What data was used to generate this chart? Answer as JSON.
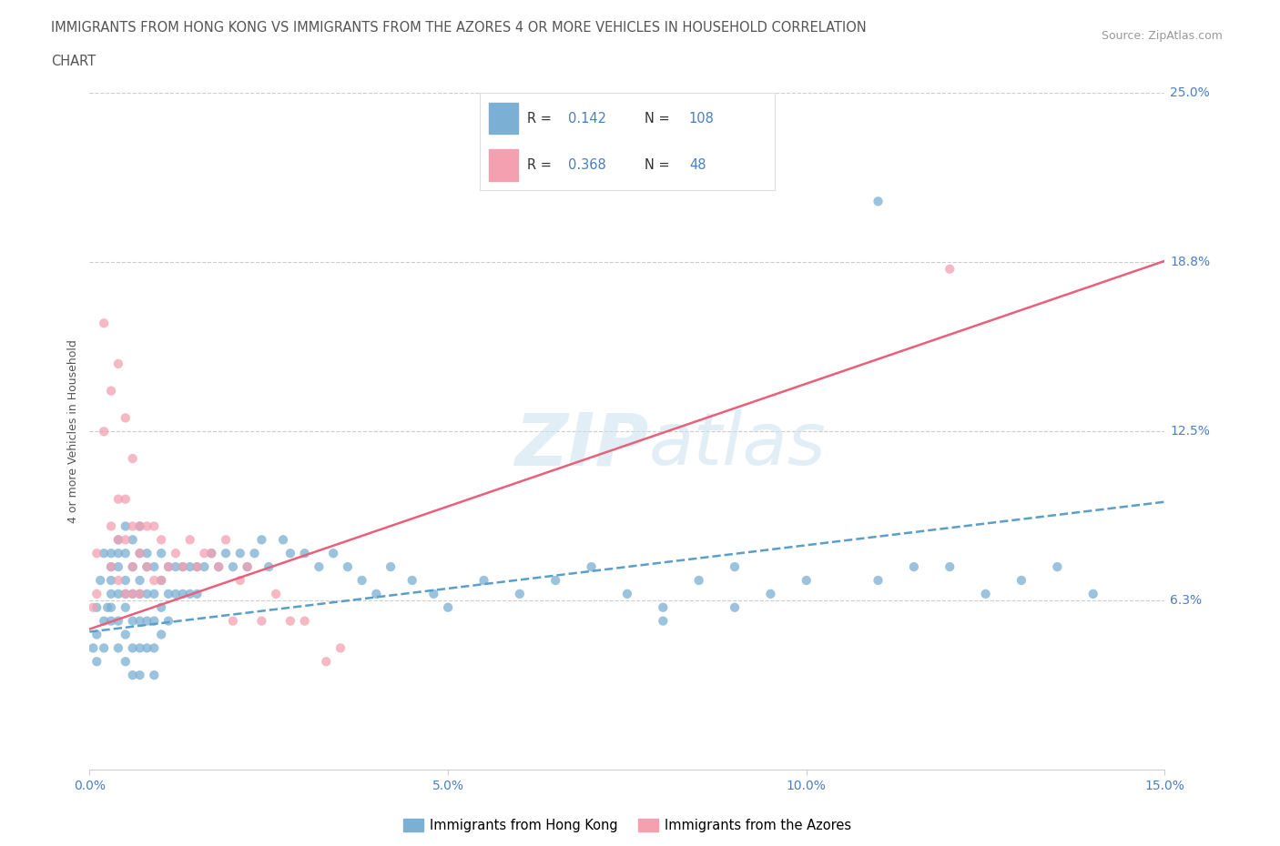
{
  "title_line1": "IMMIGRANTS FROM HONG KONG VS IMMIGRANTS FROM THE AZORES 4 OR MORE VEHICLES IN HOUSEHOLD CORRELATION",
  "title_line2": "CHART",
  "source_text": "Source: ZipAtlas.com",
  "ylabel": "4 or more Vehicles in Household",
  "xlim": [
    0.0,
    0.15
  ],
  "ylim": [
    0.0,
    0.25
  ],
  "yticks": [
    0.0,
    0.0625,
    0.125,
    0.1875,
    0.25
  ],
  "ytick_labels": [
    "",
    "6.3%",
    "12.5%",
    "18.8%",
    "25.0%"
  ],
  "xticks": [
    0.0,
    0.05,
    0.1,
    0.15
  ],
  "xtick_labels": [
    "0.0%",
    "5.0%",
    "10.0%",
    "15.0%"
  ],
  "legend_labels": [
    "Immigrants from Hong Kong",
    "Immigrants from the Azores"
  ],
  "r_hk": 0.142,
  "n_hk": 108,
  "r_az": 0.368,
  "n_az": 48,
  "color_hk": "#7bafd4",
  "color_az": "#f4a0b0",
  "color_line_hk": "#5b9ec9",
  "color_line_az": "#e8607a",
  "title_color": "#555555",
  "tick_label_color": "#4a7fc1",
  "background_color": "#ffffff",
  "grid_color": "#cccccc",
  "hk_x": [
    0.0005,
    0.001,
    0.001,
    0.001,
    0.0015,
    0.002,
    0.002,
    0.002,
    0.0025,
    0.003,
    0.003,
    0.003,
    0.003,
    0.003,
    0.003,
    0.004,
    0.004,
    0.004,
    0.004,
    0.004,
    0.004,
    0.005,
    0.005,
    0.005,
    0.005,
    0.005,
    0.005,
    0.005,
    0.006,
    0.006,
    0.006,
    0.006,
    0.006,
    0.006,
    0.007,
    0.007,
    0.007,
    0.007,
    0.007,
    0.007,
    0.007,
    0.008,
    0.008,
    0.008,
    0.008,
    0.008,
    0.009,
    0.009,
    0.009,
    0.009,
    0.009,
    0.01,
    0.01,
    0.01,
    0.01,
    0.011,
    0.011,
    0.011,
    0.012,
    0.012,
    0.013,
    0.013,
    0.014,
    0.014,
    0.015,
    0.015,
    0.016,
    0.017,
    0.018,
    0.019,
    0.02,
    0.021,
    0.022,
    0.023,
    0.024,
    0.025,
    0.027,
    0.028,
    0.03,
    0.032,
    0.034,
    0.036,
    0.038,
    0.04,
    0.042,
    0.045,
    0.048,
    0.05,
    0.055,
    0.06,
    0.065,
    0.07,
    0.075,
    0.08,
    0.085,
    0.09,
    0.095,
    0.1,
    0.11,
    0.12,
    0.125,
    0.13,
    0.135,
    0.14,
    0.115,
    0.08,
    0.09,
    0.11
  ],
  "hk_y": [
    0.045,
    0.06,
    0.05,
    0.04,
    0.07,
    0.08,
    0.055,
    0.045,
    0.06,
    0.075,
    0.065,
    0.055,
    0.08,
    0.07,
    0.06,
    0.085,
    0.075,
    0.065,
    0.055,
    0.045,
    0.08,
    0.09,
    0.08,
    0.07,
    0.065,
    0.06,
    0.05,
    0.04,
    0.085,
    0.075,
    0.065,
    0.055,
    0.045,
    0.035,
    0.09,
    0.08,
    0.07,
    0.065,
    0.055,
    0.045,
    0.035,
    0.08,
    0.075,
    0.065,
    0.055,
    0.045,
    0.075,
    0.065,
    0.055,
    0.045,
    0.035,
    0.08,
    0.07,
    0.06,
    0.05,
    0.075,
    0.065,
    0.055,
    0.075,
    0.065,
    0.075,
    0.065,
    0.075,
    0.065,
    0.075,
    0.065,
    0.075,
    0.08,
    0.075,
    0.08,
    0.075,
    0.08,
    0.075,
    0.08,
    0.085,
    0.075,
    0.085,
    0.08,
    0.08,
    0.075,
    0.08,
    0.075,
    0.07,
    0.065,
    0.075,
    0.07,
    0.065,
    0.06,
    0.07,
    0.065,
    0.07,
    0.075,
    0.065,
    0.06,
    0.07,
    0.075,
    0.065,
    0.07,
    0.07,
    0.075,
    0.065,
    0.07,
    0.075,
    0.065,
    0.075,
    0.055,
    0.06,
    0.21
  ],
  "az_x": [
    0.0005,
    0.001,
    0.001,
    0.002,
    0.002,
    0.003,
    0.003,
    0.003,
    0.004,
    0.004,
    0.004,
    0.004,
    0.005,
    0.005,
    0.005,
    0.005,
    0.006,
    0.006,
    0.006,
    0.006,
    0.007,
    0.007,
    0.007,
    0.008,
    0.008,
    0.009,
    0.009,
    0.01,
    0.01,
    0.011,
    0.012,
    0.013,
    0.014,
    0.015,
    0.016,
    0.017,
    0.018,
    0.019,
    0.02,
    0.021,
    0.022,
    0.024,
    0.026,
    0.028,
    0.03,
    0.033,
    0.035,
    0.12
  ],
  "az_y": [
    0.06,
    0.08,
    0.065,
    0.165,
    0.125,
    0.14,
    0.09,
    0.075,
    0.15,
    0.1,
    0.085,
    0.07,
    0.13,
    0.1,
    0.085,
    0.065,
    0.115,
    0.09,
    0.075,
    0.065,
    0.09,
    0.08,
    0.065,
    0.09,
    0.075,
    0.09,
    0.07,
    0.085,
    0.07,
    0.075,
    0.08,
    0.075,
    0.085,
    0.075,
    0.08,
    0.08,
    0.075,
    0.085,
    0.055,
    0.07,
    0.075,
    0.055,
    0.065,
    0.055,
    0.055,
    0.04,
    0.045,
    0.185
  ],
  "hk_trend": [
    0.051,
    0.099
  ],
  "az_trend": [
    0.052,
    0.188
  ]
}
